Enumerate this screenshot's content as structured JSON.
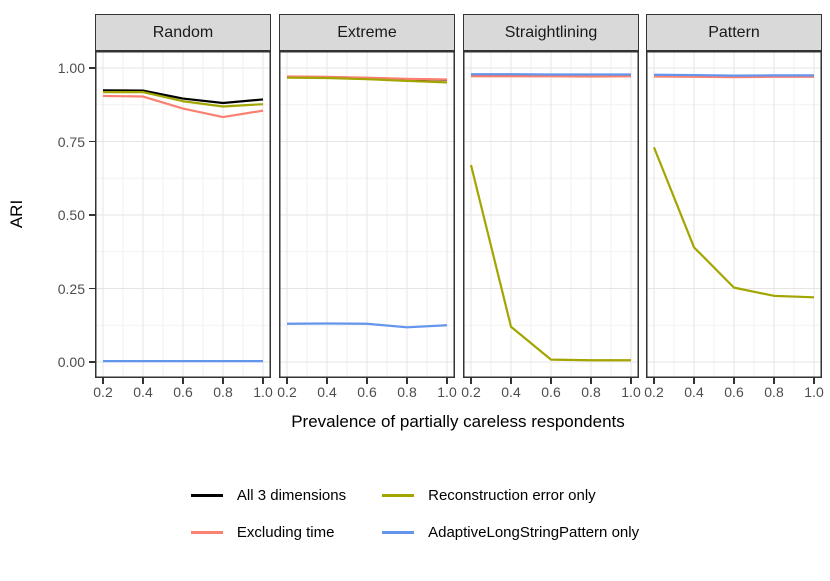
{
  "y_axis": {
    "title": "ARI",
    "tick_labels": [
      "0.00",
      "0.25",
      "0.50",
      "0.75",
      "1.00"
    ]
  },
  "x_axis": {
    "title": "Prevalence of partially careless respondents",
    "tick_labels": [
      "0.2",
      "0.4",
      "0.6",
      "0.8",
      "1.0"
    ]
  },
  "chart_data": {
    "type": "line",
    "title": "",
    "xlabel": "Prevalence of partially careless respondents",
    "ylabel": "ARI",
    "x": [
      0.2,
      0.4,
      0.6,
      0.8,
      1.0
    ],
    "x_ticks": [
      0.2,
      0.4,
      0.6,
      0.8,
      1.0
    ],
    "y_ticks": [
      0,
      0.25,
      0.5,
      0.75,
      1
    ],
    "xlim": [
      0.16,
      1.04
    ],
    "ylim": [
      0,
      1
    ],
    "grid": true,
    "legend_position": "bottom",
    "series_info": [
      {
        "name": "All 3 dimensions",
        "color": "#000000"
      },
      {
        "name": "Excluding time",
        "color": "#FA8072"
      },
      {
        "name": "Reconstruction error only",
        "color": "#A3A500"
      },
      {
        "name": "AdaptiveLongStringPattern only",
        "color": "#6495ED"
      }
    ],
    "facets": [
      {
        "label": "Random",
        "series": [
          {
            "name": "All 3 dimensions",
            "values": [
              0.924,
              0.923,
              0.896,
              0.881,
              0.893
            ]
          },
          {
            "name": "Excluding time",
            "values": [
              0.905,
              0.903,
              0.862,
              0.833,
              0.855
            ]
          },
          {
            "name": "Reconstruction error only",
            "values": [
              0.918,
              0.918,
              0.887,
              0.869,
              0.877
            ]
          },
          {
            "name": "AdaptiveLongStringPattern only",
            "values": [
              0.003,
              0.003,
              0.003,
              0.003,
              0.003
            ]
          }
        ]
      },
      {
        "label": "Extreme",
        "series": [
          {
            "name": "All 3 dimensions",
            "values": [
              0.97,
              0.969,
              0.966,
              0.962,
              0.96
            ]
          },
          {
            "name": "Excluding time",
            "values": [
              0.971,
              0.97,
              0.967,
              0.963,
              0.961
            ]
          },
          {
            "name": "Reconstruction error only",
            "values": [
              0.967,
              0.966,
              0.962,
              0.956,
              0.951
            ]
          },
          {
            "name": "AdaptiveLongStringPattern only",
            "values": [
              0.13,
              0.131,
              0.13,
              0.118,
              0.125
            ]
          }
        ]
      },
      {
        "label": "Straightlining",
        "series": [
          {
            "name": "All 3 dimensions",
            "values": [
              0.976,
              0.976,
              0.976,
              0.976,
              0.976
            ]
          },
          {
            "name": "Excluding time",
            "values": [
              0.972,
              0.972,
              0.972,
              0.971,
              0.972
            ]
          },
          {
            "name": "Reconstruction error only",
            "values": [
              0.67,
              0.12,
              0.008,
              0.006,
              0.006
            ]
          },
          {
            "name": "AdaptiveLongStringPattern only",
            "values": [
              0.979,
              0.979,
              0.978,
              0.978,
              0.978
            ]
          }
        ]
      },
      {
        "label": "Pattern",
        "series": [
          {
            "name": "All 3 dimensions",
            "values": [
              0.975,
              0.974,
              0.973,
              0.974,
              0.974
            ]
          },
          {
            "name": "Excluding time",
            "values": [
              0.971,
              0.97,
              0.969,
              0.97,
              0.97
            ]
          },
          {
            "name": "Reconstruction error only",
            "values": [
              0.73,
              0.39,
              0.253,
              0.225,
              0.22
            ]
          },
          {
            "name": "AdaptiveLongStringPattern only",
            "values": [
              0.977,
              0.976,
              0.974,
              0.975,
              0.975
            ]
          }
        ]
      }
    ]
  }
}
